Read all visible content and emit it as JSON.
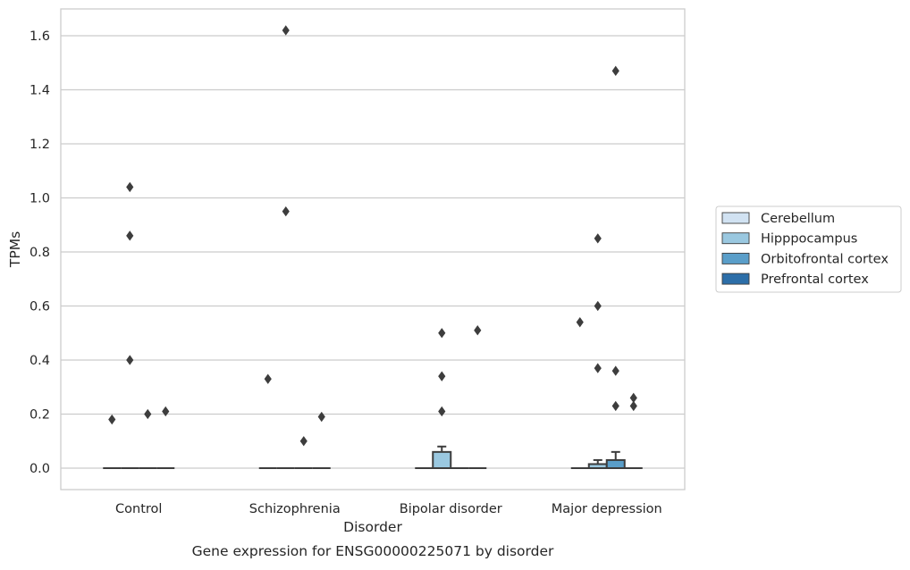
{
  "caption": "Gene expression for ENSG00000225071 by disorder",
  "chart_data": {
    "type": "box",
    "xlabel": "Disorder",
    "ylabel": "TPMs",
    "ylim": [
      -0.08,
      1.7
    ],
    "yticks": [
      0.0,
      0.2,
      0.4,
      0.6,
      0.8,
      1.0,
      1.2,
      1.4,
      1.6
    ],
    "ytick_labels": [
      "0.0",
      "0.2",
      "0.4",
      "0.6",
      "0.8",
      "1.0",
      "1.2",
      "1.4",
      "1.6"
    ],
    "grid": true,
    "legend_position": "right",
    "categories": [
      "Control",
      "Schizophrenia",
      "Bipolar disorder",
      "Major depression"
    ],
    "series": [
      {
        "name": "Cerebellum",
        "color": "#d1e2f2",
        "boxes": [
          {
            "q1": 0,
            "median": 0,
            "q3": 0,
            "whisker_low": 0,
            "whisker_high": 0,
            "outliers": [
              0.18
            ]
          },
          {
            "q1": 0,
            "median": 0,
            "q3": 0,
            "whisker_low": 0,
            "whisker_high": 0,
            "outliers": [
              0.33
            ]
          },
          {
            "q1": 0,
            "median": 0,
            "q3": 0,
            "whisker_low": 0,
            "whisker_high": 0,
            "outliers": []
          },
          {
            "q1": 0,
            "median": 0,
            "q3": 0,
            "whisker_low": 0,
            "whisker_high": 0,
            "outliers": [
              0.54
            ]
          }
        ]
      },
      {
        "name": "Hipppocampus",
        "color": "#9ac8e0",
        "boxes": [
          {
            "q1": 0,
            "median": 0,
            "q3": 0,
            "whisker_low": 0,
            "whisker_high": 0,
            "outliers": [
              1.04,
              0.86,
              0.4
            ]
          },
          {
            "q1": 0,
            "median": 0,
            "q3": 0,
            "whisker_low": 0,
            "whisker_high": 0,
            "outliers": [
              1.62,
              0.95
            ]
          },
          {
            "q1": 0,
            "median": 0,
            "q3": 0.06,
            "whisker_low": 0,
            "whisker_high": 0.08,
            "outliers": [
              0.5,
              0.34,
              0.21
            ]
          },
          {
            "q1": 0,
            "median": 0,
            "q3": 0.015,
            "whisker_low": 0,
            "whisker_high": 0.03,
            "outliers": [
              0.85,
              0.6,
              0.37
            ]
          }
        ]
      },
      {
        "name": "Orbitofrontal cortex",
        "color": "#5a9ec9",
        "boxes": [
          {
            "q1": 0,
            "median": 0,
            "q3": 0,
            "whisker_low": 0,
            "whisker_high": 0,
            "outliers": [
              0.2
            ]
          },
          {
            "q1": 0,
            "median": 0,
            "q3": 0,
            "whisker_low": 0,
            "whisker_high": 0,
            "outliers": [
              0.1
            ]
          },
          {
            "q1": 0,
            "median": 0,
            "q3": 0,
            "whisker_low": 0,
            "whisker_high": 0,
            "outliers": []
          },
          {
            "q1": 0,
            "median": 0,
            "q3": 0.03,
            "whisker_low": 0,
            "whisker_high": 0.06,
            "outliers": [
              1.47,
              0.36,
              0.23
            ]
          }
        ]
      },
      {
        "name": "Prefrontal cortex",
        "color": "#2c6ea8",
        "boxes": [
          {
            "q1": 0,
            "median": 0,
            "q3": 0,
            "whisker_low": 0,
            "whisker_high": 0,
            "outliers": [
              0.21
            ]
          },
          {
            "q1": 0,
            "median": 0,
            "q3": 0,
            "whisker_low": 0,
            "whisker_high": 0,
            "outliers": [
              0.19
            ]
          },
          {
            "q1": 0,
            "median": 0,
            "q3": 0,
            "whisker_low": 0,
            "whisker_high": 0,
            "outliers": [
              0.51
            ]
          },
          {
            "q1": 0,
            "median": 0,
            "q3": 0,
            "whisker_low": 0,
            "whisker_high": 0,
            "outliers": [
              0.26,
              0.23
            ]
          }
        ]
      }
    ],
    "colors": {
      "grid": "#cccccc",
      "frame": "#cccccc",
      "box_edge": "#3d3d3d",
      "outlier": "#3d3d3d"
    }
  }
}
